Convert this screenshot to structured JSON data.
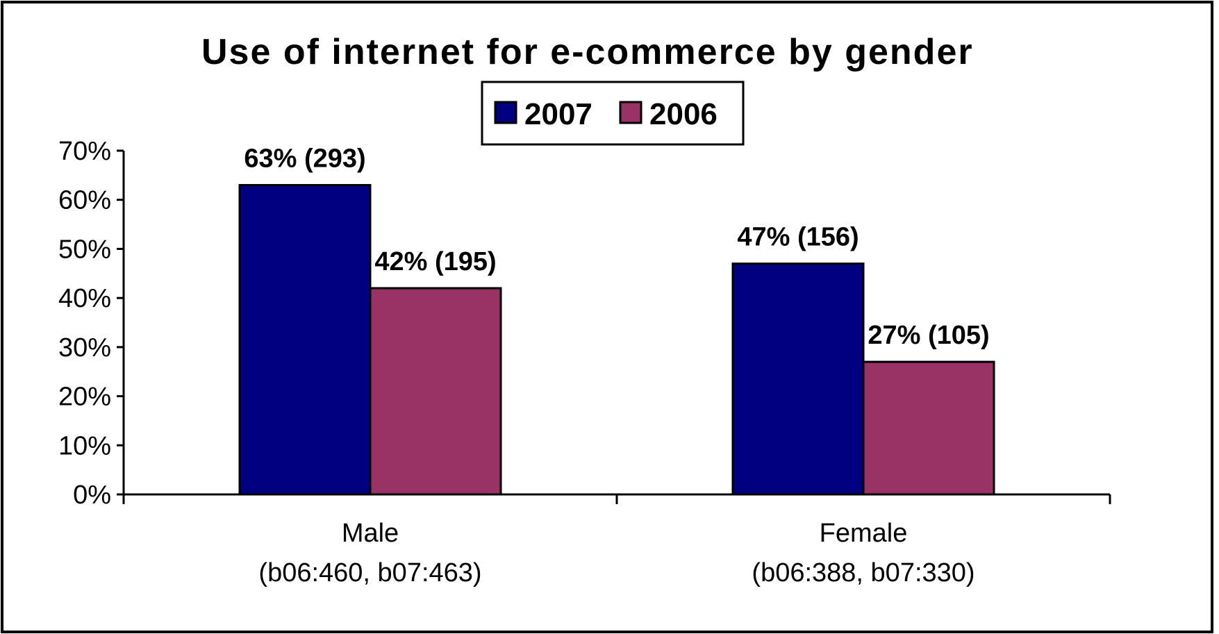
{
  "chart_data": {
    "type": "bar",
    "title": "Use of internet for e-commerce by gender",
    "categories": [
      "Male",
      "Female"
    ],
    "category_notes": [
      "(b06:460, b07:463)",
      "(b06:388, b07:330)"
    ],
    "series": [
      {
        "name": "2007",
        "values": [
          63,
          47
        ],
        "labels": [
          "63% (293)",
          "47% (156)"
        ],
        "color": "#000080"
      },
      {
        "name": "2006",
        "values": [
          42,
          27
        ],
        "labels": [
          "42% (195)",
          "27% (105)"
        ],
        "color": "#993366"
      }
    ],
    "ylim": [
      0,
      70
    ],
    "yticks": [
      "0%",
      "10%",
      "20%",
      "30%",
      "40%",
      "50%",
      "60%",
      "70%"
    ],
    "grid": false,
    "legend_position": "top"
  }
}
